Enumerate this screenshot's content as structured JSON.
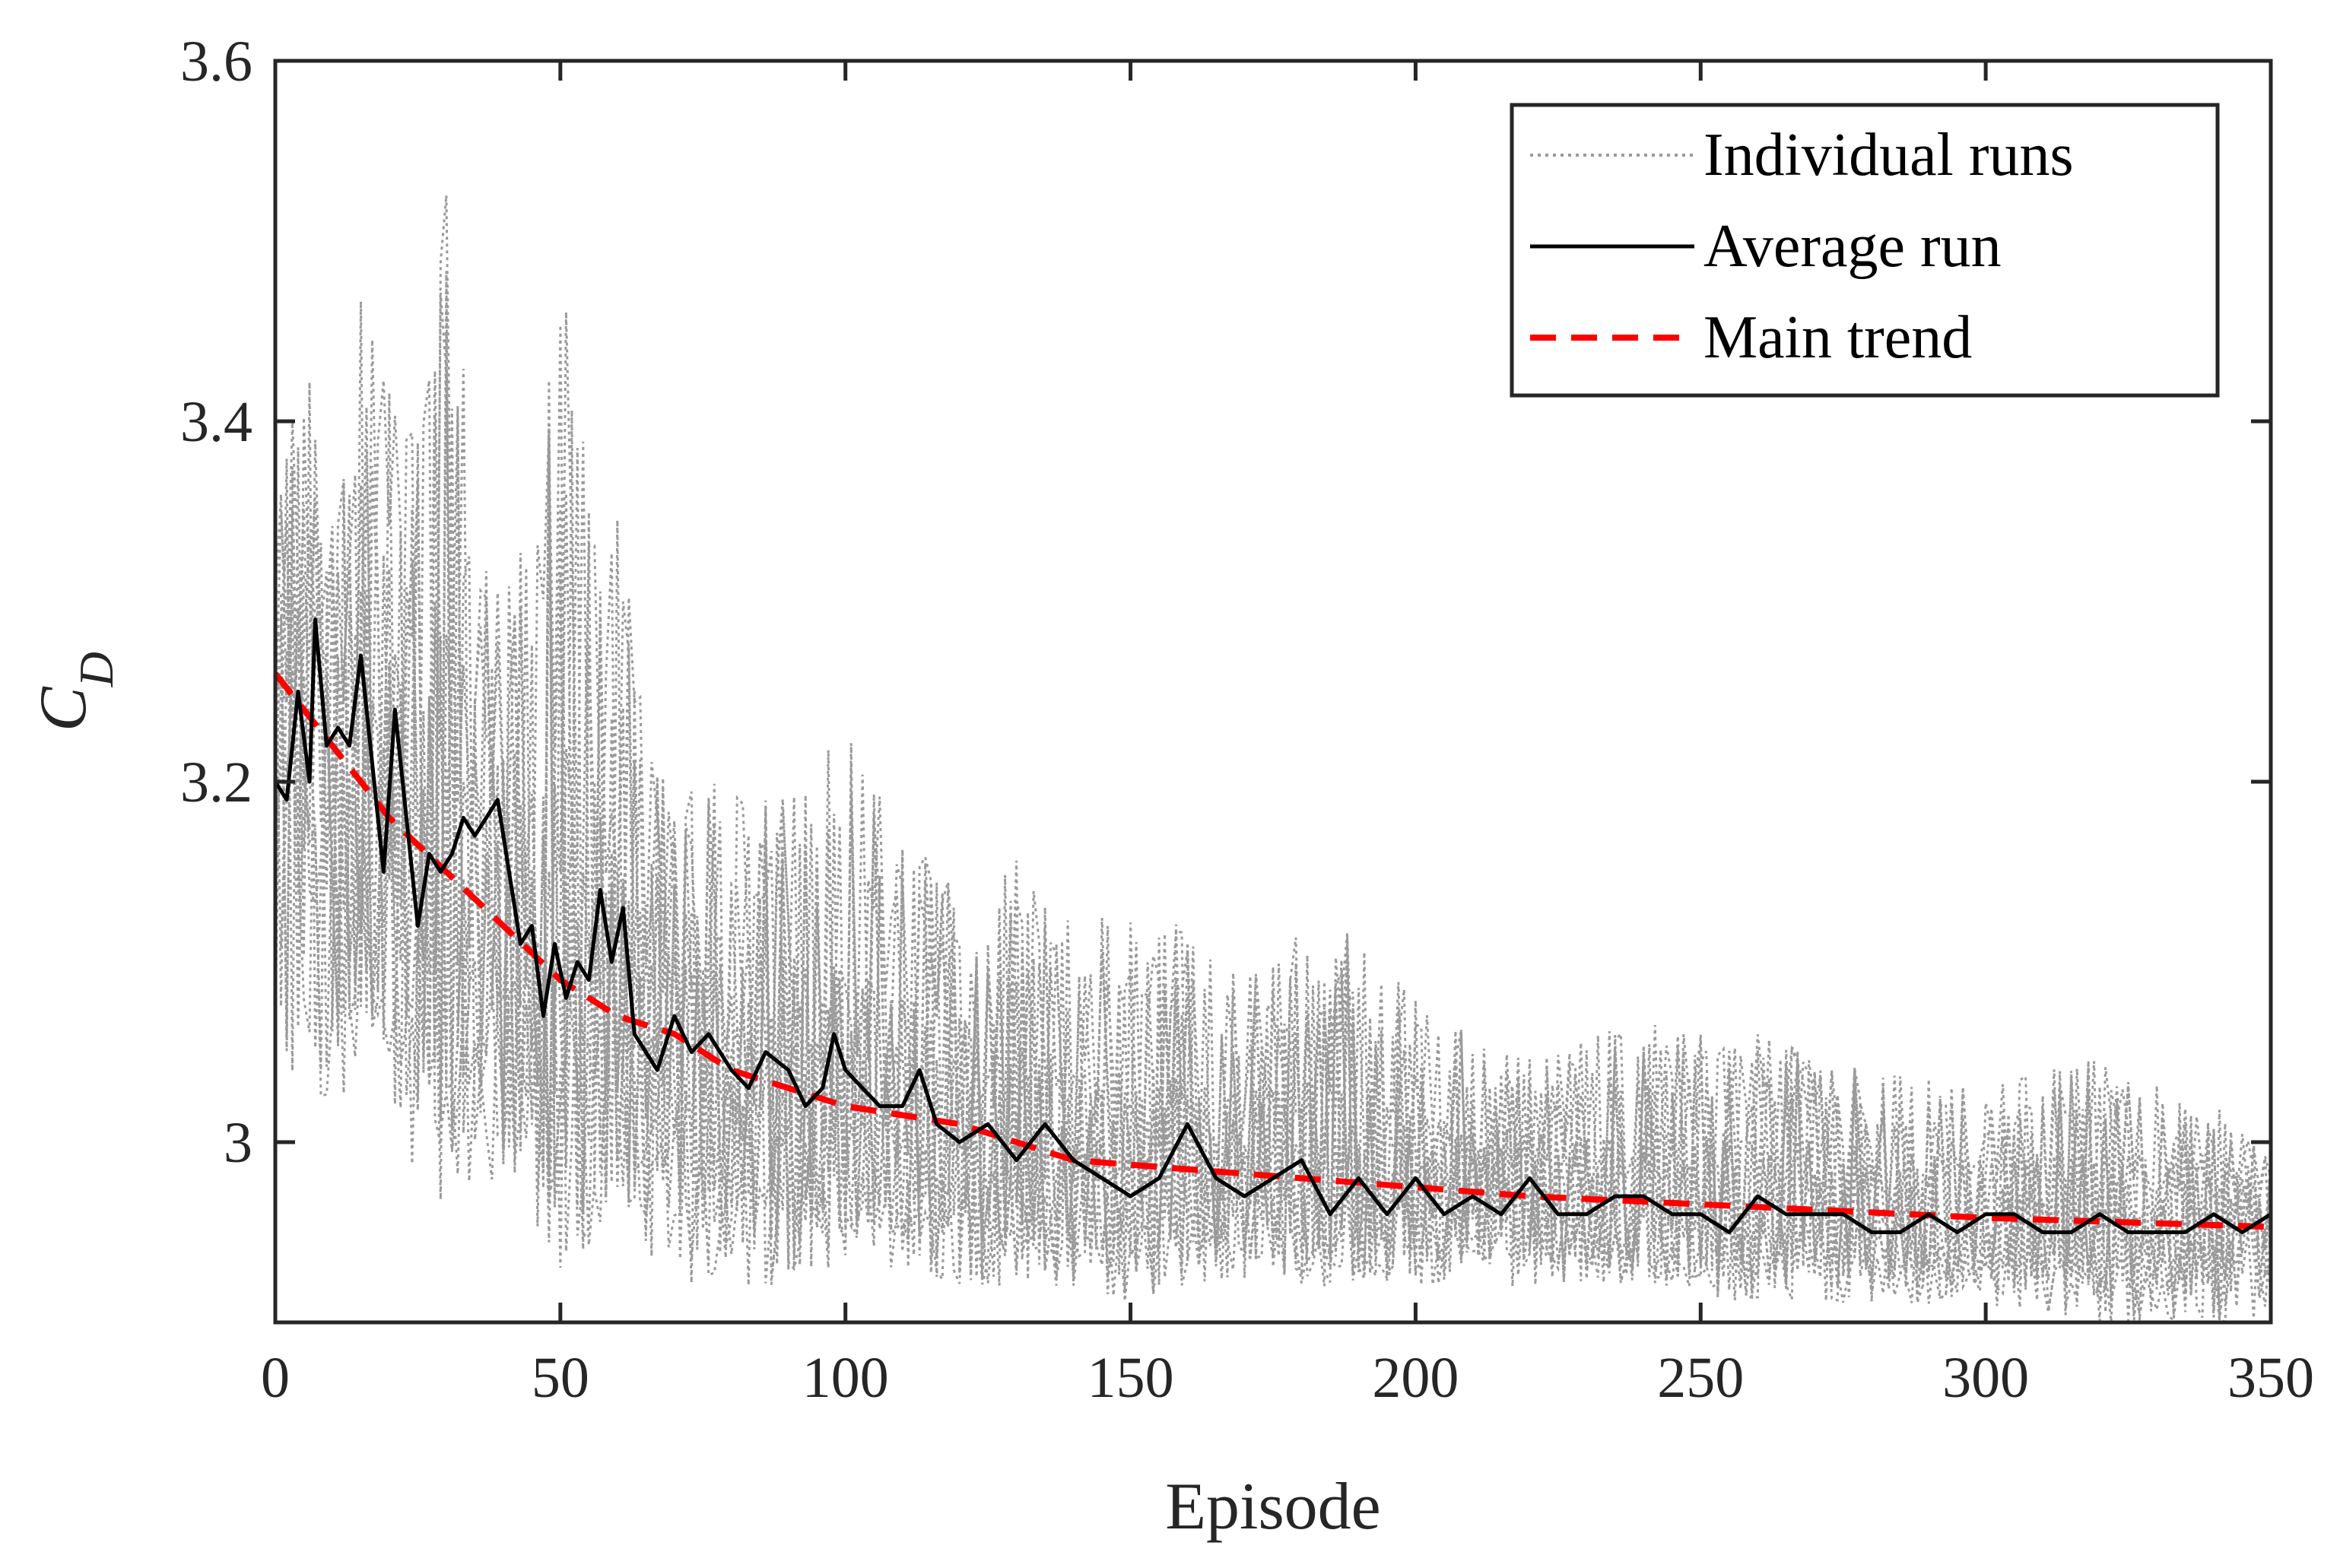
{
  "chart_data": {
    "type": "line",
    "title": "",
    "xlabel": "Episode",
    "ylabel": "C",
    "ylabel_subscript": "D",
    "xlim": [
      0,
      350
    ],
    "ylim": [
      2.9,
      3.6
    ],
    "xticks": [
      0,
      50,
      100,
      150,
      200,
      250,
      300,
      350
    ],
    "xtick_labels": [
      "0",
      "50",
      "100",
      "150",
      "200",
      "250",
      "300",
      "350"
    ],
    "yticks": [
      3.0,
      3.2,
      3.4,
      3.6
    ],
    "ytick_labels": [
      "3",
      "3.2",
      "3.4",
      "3.6"
    ],
    "grid": false,
    "legend_position": "top-right",
    "series": [
      {
        "name": "Individual runs",
        "style": "dotted",
        "color": "#9a9a9a",
        "envelope": {
          "x": [
            0,
            5,
            10,
            15,
            20,
            25,
            30,
            35,
            40,
            45,
            50,
            55,
            60,
            65,
            70,
            80,
            90,
            100,
            110,
            120,
            130,
            140,
            150,
            160,
            170,
            180,
            190,
            200,
            220,
            240,
            260,
            280,
            300,
            320,
            340,
            350
          ],
          "upper": [
            3.36,
            3.44,
            3.38,
            3.48,
            3.42,
            3.4,
            3.55,
            3.38,
            3.34,
            3.33,
            3.49,
            3.4,
            3.36,
            3.22,
            3.2,
            3.21,
            3.19,
            3.23,
            3.17,
            3.15,
            3.16,
            3.12,
            3.13,
            3.12,
            3.09,
            3.12,
            3.12,
            3.08,
            3.05,
            3.07,
            3.06,
            3.04,
            3.03,
            3.05,
            3.02,
            3.0
          ],
          "lower": [
            3.03,
            3.02,
            3.02,
            3.01,
            3.0,
            2.98,
            2.95,
            2.98,
            2.97,
            2.94,
            2.93,
            2.94,
            2.97,
            2.93,
            2.92,
            2.92,
            2.92,
            2.93,
            2.93,
            2.92,
            2.92,
            2.92,
            2.91,
            2.92,
            2.92,
            2.92,
            2.92,
            2.92,
            2.92,
            2.92,
            2.91,
            2.91,
            2.91,
            2.9,
            2.9,
            2.9
          ]
        }
      },
      {
        "name": "Average run",
        "style": "solid",
        "color": "#000000",
        "x": [
          0,
          2,
          4,
          6,
          7,
          9,
          11,
          13,
          15,
          17,
          19,
          21,
          23,
          25,
          27,
          29,
          31,
          33,
          35,
          37,
          39,
          41,
          43,
          45,
          47,
          49,
          51,
          53,
          55,
          57,
          59,
          61,
          63,
          65,
          67,
          70,
          73,
          76,
          80,
          83,
          86,
          90,
          93,
          96,
          98,
          100,
          103,
          106,
          110,
          113,
          116,
          120,
          125,
          130,
          135,
          140,
          145,
          150,
          155,
          160,
          165,
          170,
          175,
          180,
          185,
          190,
          195,
          200,
          205,
          210,
          215,
          220,
          225,
          230,
          235,
          240,
          245,
          250,
          255,
          260,
          265,
          270,
          275,
          280,
          285,
          290,
          295,
          300,
          305,
          310,
          315,
          320,
          325,
          330,
          335,
          340,
          345,
          350
        ],
        "y": [
          3.2,
          3.19,
          3.25,
          3.2,
          3.29,
          3.22,
          3.23,
          3.22,
          3.27,
          3.21,
          3.15,
          3.24,
          3.18,
          3.12,
          3.16,
          3.15,
          3.16,
          3.18,
          3.17,
          3.18,
          3.19,
          3.15,
          3.11,
          3.12,
          3.07,
          3.11,
          3.08,
          3.1,
          3.09,
          3.14,
          3.1,
          3.13,
          3.06,
          3.05,
          3.04,
          3.07,
          3.05,
          3.06,
          3.04,
          3.03,
          3.05,
          3.04,
          3.02,
          3.03,
          3.06,
          3.04,
          3.03,
          3.02,
          3.02,
          3.04,
          3.01,
          3.0,
          3.01,
          2.99,
          3.01,
          2.99,
          2.98,
          2.97,
          2.98,
          3.01,
          2.98,
          2.97,
          2.98,
          2.99,
          2.96,
          2.98,
          2.96,
          2.98,
          2.96,
          2.97,
          2.96,
          2.98,
          2.96,
          2.96,
          2.97,
          2.97,
          2.96,
          2.96,
          2.95,
          2.97,
          2.96,
          2.96,
          2.96,
          2.95,
          2.95,
          2.96,
          2.95,
          2.96,
          2.96,
          2.95,
          2.95,
          2.96,
          2.95,
          2.95,
          2.95,
          2.96,
          2.95,
          2.96
        ]
      },
      {
        "name": "Main trend",
        "style": "dashed",
        "color": "#ff0000",
        "x": [
          0,
          10,
          20,
          30,
          40,
          50,
          60,
          70,
          80,
          90,
          100,
          120,
          140,
          160,
          180,
          200,
          220,
          240,
          260,
          280,
          300,
          320,
          340,
          350
        ],
        "y": [
          3.26,
          3.22,
          3.18,
          3.15,
          3.12,
          3.09,
          3.07,
          3.06,
          3.04,
          3.03,
          3.02,
          3.01,
          2.99,
          2.985,
          2.98,
          2.975,
          2.97,
          2.967,
          2.964,
          2.961,
          2.958,
          2.956,
          2.954,
          2.953
        ]
      }
    ]
  }
}
